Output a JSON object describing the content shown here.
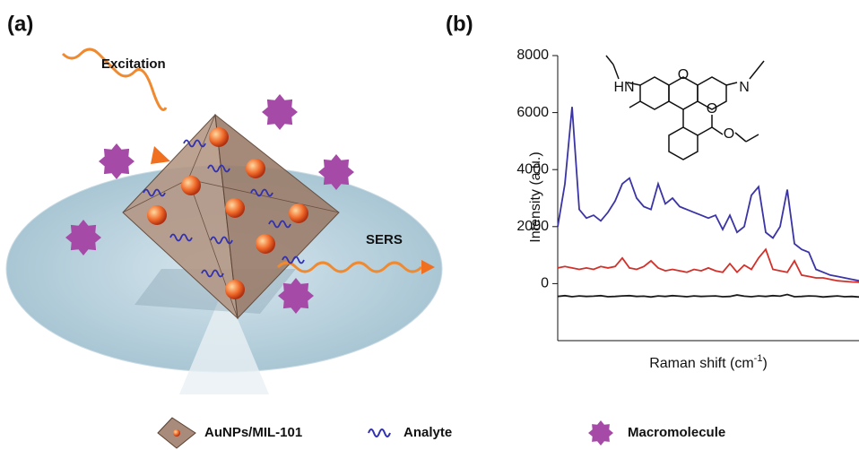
{
  "panel_a": {
    "label": "(a)",
    "excitation": "Excitation",
    "sers": "SERS"
  },
  "panel_b": {
    "label": "(b)",
    "molecule_labels": [
      "HN",
      "O",
      "N",
      "O",
      "O"
    ]
  },
  "legend": [
    "AuNPs/MIL-101",
    "Analyte",
    "Macromolecule"
  ],
  "chart_data": {
    "type": "line",
    "ylabel": "Intensity (a.u.)",
    "xlabel": "Raman shift (cm",
    "xlabel_sup": "-1",
    "xlabel_end": ")",
    "ylim": [
      -2000,
      8000
    ],
    "yticks": [
      0,
      2000,
      4000,
      6000,
      8000
    ],
    "series": [
      {
        "color": "#3a34a4",
        "values": [
          2000,
          3500,
          6200,
          2600,
          2300,
          2400,
          2200,
          2500,
          2900,
          3500,
          3700,
          3000,
          2700,
          2600,
          3500,
          2800,
          3000,
          2700,
          2600,
          2500,
          2400,
          2300,
          2400,
          1900,
          2400,
          1800,
          2000,
          3100,
          3400,
          1800,
          1600,
          2000,
          3300,
          1400,
          1200,
          1100,
          500,
          400,
          300,
          250,
          200,
          150,
          100
        ]
      },
      {
        "color": "#d3302a",
        "values": [
          550,
          600,
          550,
          500,
          550,
          500,
          600,
          550,
          600,
          900,
          550,
          500,
          600,
          800,
          550,
          450,
          500,
          450,
          400,
          500,
          450,
          550,
          450,
          400,
          700,
          400,
          650,
          500,
          900,
          1200,
          500,
          450,
          400,
          800,
          300,
          250,
          200,
          200,
          150,
          100,
          80,
          60,
          50
        ]
      },
      {
        "color": "#1a1a1a",
        "values": [
          -450,
          -420,
          -460,
          -430,
          -450,
          -440,
          -420,
          -460,
          -450,
          -430,
          -420,
          -450,
          -440,
          -470,
          -430,
          -450,
          -420,
          -440,
          -460,
          -430,
          -450,
          -440,
          -430,
          -460,
          -450,
          -400,
          -440,
          -460,
          -430,
          -450,
          -420,
          -440,
          -380,
          -460,
          -450,
          -430,
          -440,
          -470,
          -450,
          -430,
          -460,
          -450,
          -470
        ]
      }
    ]
  }
}
